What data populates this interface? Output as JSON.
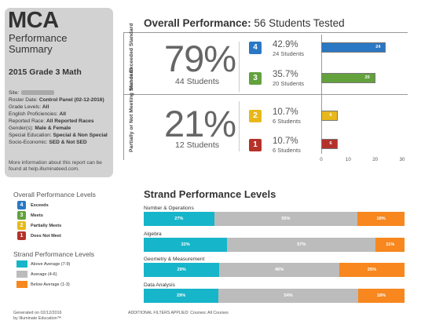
{
  "panel": {
    "title": "MCA",
    "subtitle_1": "Performance",
    "subtitle_2": "Summary",
    "grade": "2015 Grade 3 Math",
    "site_label": "Site:",
    "roster_label": "Roster Date:",
    "roster_value": "Control Panel (02-12-2016)",
    "grade_levels_label": "Grade Levels:",
    "grade_levels_value": "All",
    "english_label": "English Proficiencies:",
    "english_value": "All",
    "race_label": "Reported Race:",
    "race_value": "All Reported Races",
    "gender_label": "Gender(s):",
    "gender_value": "Male & Female",
    "sped_label": "Special Education:",
    "sped_value": "Special & Non Special",
    "ses_label": "Socio-Economic:",
    "ses_value": "SED & Not SED",
    "more_info_1": "More information about this report can be",
    "more_info_2": "found at help.illuminateed.com."
  },
  "legend_overall": {
    "title": "Overall Performance Levels",
    "items": [
      {
        "num": "4",
        "label": "Exceeds",
        "color": "#2a77c4"
      },
      {
        "num": "3",
        "label": "Meets",
        "color": "#63a13d"
      },
      {
        "num": "2",
        "label": "Partially Meets",
        "color": "#e8b81b"
      },
      {
        "num": "1",
        "label": "Does Not Meet",
        "color": "#b5322a"
      }
    ]
  },
  "legend_strand": {
    "title": "Strand Performance Levels",
    "items": [
      {
        "label": "Above Average (7-9)",
        "color": "#17b5c9"
      },
      {
        "label": "Average (4-6)",
        "color": "#bcbcbc"
      },
      {
        "label": "Below Average (1-3)",
        "color": "#f7871e"
      }
    ]
  },
  "footer": {
    "generated_1": "Generated on 02/12/2016",
    "generated_2": "by Illuminate Education™",
    "filters": "ADDITIONAL FILTERS APPLIED: Courses: All Courses"
  },
  "chart_data": [
    {
      "type": "bar",
      "title": "Overall Performance:",
      "subtitle": "56 Students Tested",
      "orientation": "horizontal",
      "groups": [
        {
          "label": "Met or Exceeded Standard",
          "percent": "79%",
          "students": "44 Students"
        },
        {
          "label": "Partially or Not Meeting Standard",
          "percent": "21%",
          "students": "12 Students"
        }
      ],
      "categories": [
        "4",
        "3",
        "2",
        "1"
      ],
      "values": [
        24,
        20,
        6,
        6
      ],
      "value_labels": [
        "24",
        "20",
        "6",
        "6"
      ],
      "percents": [
        "42.9%",
        "35.7%",
        "10.7%",
        "10.7%"
      ],
      "student_counts": [
        "24 Students",
        "20 Students",
        "6 Students",
        "6 Students"
      ],
      "colors": [
        "#2a77c4",
        "#63a13d",
        "#e8b81b",
        "#b5322a"
      ],
      "xlim": [
        0,
        30
      ],
      "xticks": [
        "0",
        "10",
        "20",
        "30"
      ]
    },
    {
      "type": "bar",
      "stacked": true,
      "orientation": "horizontal",
      "title": "Strand Performance Levels",
      "categories": [
        "Number & Operations",
        "Algebra",
        "Geometry & Measurement",
        "Data Analysis"
      ],
      "series": [
        {
          "name": "Above Average (7-9)",
          "color": "#17b5c9",
          "values": [
            27,
            32,
            29,
            29
          ]
        },
        {
          "name": "Average (4-6)",
          "color": "#bcbcbc",
          "values": [
            55,
            57,
            46,
            54
          ]
        },
        {
          "name": "Below Average (1-3)",
          "color": "#f7871e",
          "values": [
            18,
            11,
            25,
            18
          ]
        }
      ],
      "labels": [
        [
          "27%",
          "55%",
          "18%"
        ],
        [
          "32%",
          "57%",
          "11%"
        ],
        [
          "29%",
          "46%",
          "25%"
        ],
        [
          "29%",
          "54%",
          "18%"
        ]
      ],
      "xlim": [
        0,
        100
      ]
    }
  ]
}
